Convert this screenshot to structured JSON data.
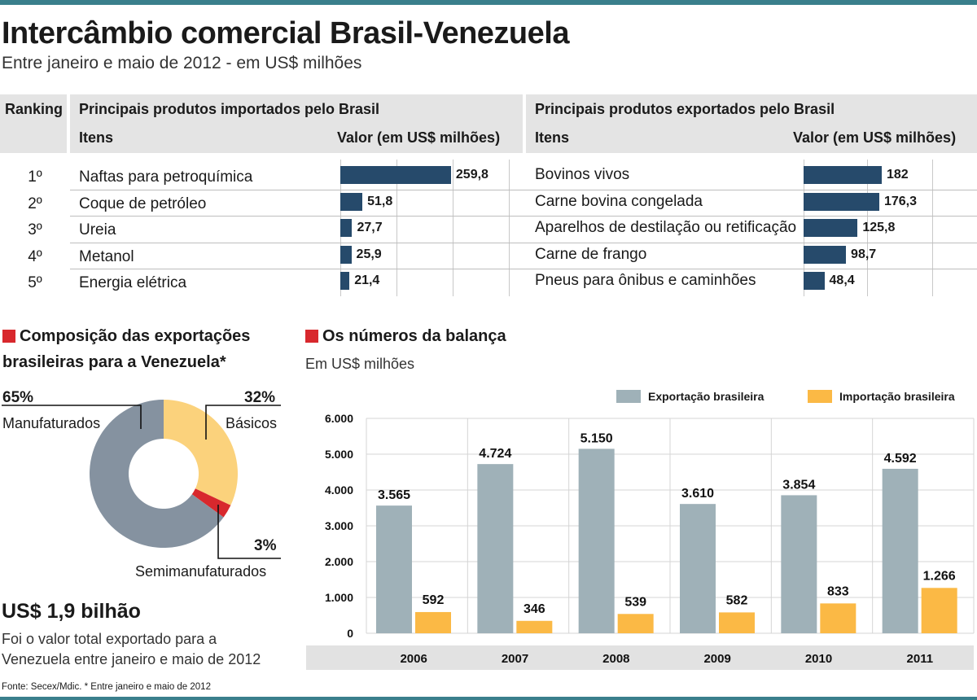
{
  "title": "Intercâmbio comercial Brasil-Venezuela",
  "subtitle": "Entre janeiro e maio de 2012 - em US$ milhões",
  "ranking_table": {
    "ranking_header": "Ranking",
    "imports_header": "Principais produtos importados pelo Brasil",
    "exports_header": "Principais produtos exportados pelo Brasil",
    "items_col": "Itens",
    "value_col": "Valor (em US$ milhões)",
    "ranks": [
      "1º",
      "2º",
      "3º",
      "4º",
      "5º"
    ],
    "imports": [
      {
        "item": "Naftas para petroquímica",
        "value": 259.8,
        "label": "259,8"
      },
      {
        "item": "Coque de petróleo",
        "value": 51.8,
        "label": "51,8"
      },
      {
        "item": "Ureia",
        "value": 27.7,
        "label": "27,7"
      },
      {
        "item": "Metanol",
        "value": 25.9,
        "label": "25,9"
      },
      {
        "item": "Energia elétrica",
        "value": 21.4,
        "label": "21,4"
      }
    ],
    "exports": [
      {
        "item": "Bovinos vivos",
        "value": 182,
        "label": "182"
      },
      {
        "item": "Carne bovina congelada",
        "value": 176.3,
        "label": "176,3"
      },
      {
        "item": "Aparelhos de destilação ou retificação",
        "value": 125.8,
        "label": "125,8"
      },
      {
        "item": "Carne de frango",
        "value": 98.7,
        "label": "98,7"
      },
      {
        "item": "Pneus para ônibus e caminhões",
        "value": 48.4,
        "label": "48,4"
      }
    ]
  },
  "composition": {
    "title_line1": "Composição das exportações",
    "title_line2": "brasileiras para a Venezuela*",
    "slices": [
      {
        "name": "Manufaturados",
        "pct_label": "65%",
        "value": 65,
        "color": "#8592a0"
      },
      {
        "name": "Básicos",
        "pct_label": "32%",
        "value": 32,
        "color": "#fbd27c"
      },
      {
        "name": "Semimanufaturados",
        "pct_label": "3%",
        "value": 3,
        "color": "#d8282d"
      }
    ],
    "total_value": "US$ 1,9 bilhão",
    "total_note_line1": "Foi o valor total exportado para a",
    "total_note_line2": "Venezuela entre janeiro e maio de 2012"
  },
  "balance": {
    "title": "Os números da balança",
    "unit": "Em US$ milhões"
  },
  "chart_data": {
    "type": "bar",
    "categories": [
      "2006",
      "2007",
      "2008",
      "2009",
      "2010",
      "2011"
    ],
    "series": [
      {
        "name": "Exportação brasileira",
        "color": "#9fb1b8",
        "values": [
          3565,
          4724,
          5150,
          3610,
          3854,
          4592
        ],
        "labels": [
          "3.565",
          "4.724",
          "5.150",
          "3.610",
          "3.854",
          "4.592"
        ]
      },
      {
        "name": "Importação brasileira",
        "color": "#fbb945",
        "values": [
          592,
          346,
          539,
          582,
          833,
          1266
        ],
        "labels": [
          "592",
          "346",
          "539",
          "582",
          "833",
          "1.266"
        ]
      }
    ],
    "ylim": [
      0,
      6000
    ],
    "yticks": [
      0,
      1000,
      2000,
      3000,
      4000,
      5000,
      6000
    ],
    "ytick_labels": [
      "0",
      "1.000",
      "2.000",
      "3.000",
      "4.000",
      "5.000",
      "6.000"
    ],
    "legend": "top-right",
    "grid": true
  },
  "source": "Fonte: Secex/Mdic. * Entre janeiro e maio de 2012",
  "colors": {
    "bar_dark": "#264a6b",
    "accent_red": "#d8282d",
    "frame": "#3a7f8c"
  }
}
